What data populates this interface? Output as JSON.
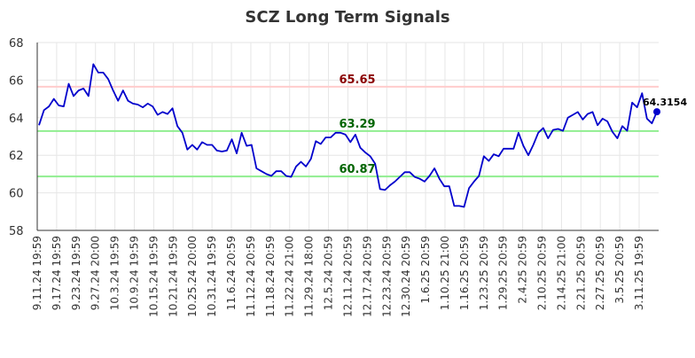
{
  "chart_data": {
    "type": "line",
    "title": "SCZ Long Term Signals",
    "xlabel": "",
    "ylabel": "",
    "ylim": [
      58,
      68
    ],
    "yticks": [
      58,
      60,
      62,
      64,
      66,
      68
    ],
    "grid": true,
    "x_tick_labels": [
      "9.11.24 19:59",
      "9.17.24 19:59",
      "9.23.24 19:59",
      "9.27.24 20:00",
      "10.3.24 19:59",
      "10.9.24 19:59",
      "10.15.24 19:59",
      "10.21.24 19:59",
      "10.25.24 20:00",
      "10.31.24 19:59",
      "11.6.24 20:59",
      "11.12.24 20:59",
      "11.18.24 20:59",
      "11.22.24 21:00",
      "11.29.24 18:00",
      "12.5.24 20:59",
      "12.11.24 20:59",
      "12.17.24 20:59",
      "12.23.24 20:59",
      "12.30.24 20:59",
      "1.6.25 20:59",
      "1.10.25 21:00",
      "1.16.25 20:59",
      "1.23.25 20:59",
      "1.29.25 20:59",
      "2.4.25 20:59",
      "2.10.25 20:59",
      "2.14.25 21:00",
      "2.21.25 20:59",
      "2.27.25 20:59",
      "3.5.25 20:59",
      "3.11.25 19:59"
    ],
    "values": [
      63.6,
      64.4,
      64.6,
      65.0,
      64.65,
      64.6,
      65.8,
      65.15,
      65.45,
      65.55,
      65.15,
      66.85,
      66.4,
      66.4,
      66.05,
      65.45,
      64.9,
      65.45,
      64.9,
      64.75,
      64.7,
      64.55,
      64.75,
      64.6,
      64.15,
      64.3,
      64.2,
      64.5,
      63.55,
      63.2,
      62.3,
      62.55,
      62.3,
      62.7,
      62.55,
      62.55,
      62.25,
      62.2,
      62.25,
      62.85,
      62.1,
      63.2,
      62.5,
      62.55,
      61.3,
      61.15,
      61.0,
      60.9,
      61.15,
      61.15,
      60.9,
      60.85,
      61.4,
      61.65,
      61.4,
      61.8,
      62.75,
      62.6,
      62.95,
      62.95,
      63.2,
      63.2,
      63.1,
      62.7,
      63.1,
      62.4,
      62.15,
      61.95,
      61.55,
      60.2,
      60.15,
      60.4,
      60.6,
      60.85,
      61.1,
      61.1,
      60.85,
      60.75,
      60.6,
      60.9,
      61.3,
      60.75,
      60.35,
      60.35,
      59.3,
      59.3,
      59.25,
      60.25,
      60.6,
      60.9,
      61.95,
      61.7,
      62.05,
      61.95,
      62.35,
      62.35,
      62.35,
      63.2,
      62.5,
      62.0,
      62.55,
      63.2,
      63.45,
      62.9,
      63.35,
      63.4,
      63.3,
      64.0,
      64.15,
      64.3,
      63.9,
      64.2,
      64.3,
      63.6,
      63.95,
      63.8,
      63.25,
      62.9,
      63.55,
      63.3,
      64.8,
      64.55,
      65.3,
      63.95,
      63.7,
      64.3154
    ],
    "reference_lines": [
      {
        "value": 65.65,
        "label": "65.65",
        "line_color": "#ffcccc",
        "text_color": "#8b0000"
      },
      {
        "value": 63.29,
        "label": "63.29",
        "line_color": "#90ee90",
        "text_color": "#006400"
      },
      {
        "value": 60.87,
        "label": "60.87",
        "line_color": "#90ee90",
        "text_color": "#006400"
      }
    ],
    "last_value_label": "64.3154",
    "line_color": "#0000cc"
  }
}
